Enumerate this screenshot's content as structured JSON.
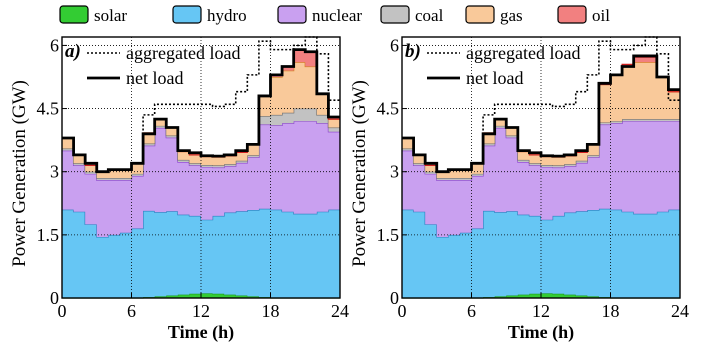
{
  "legend": {
    "items": [
      {
        "label": "solar",
        "color": "#33cc33"
      },
      {
        "label": "hydro",
        "color": "#66c6f4"
      },
      {
        "label": "nuclear",
        "color": "#c9a0f0"
      },
      {
        "label": "coal",
        "color": "#c2c2c2"
      },
      {
        "label": "gas",
        "color": "#f9c99a"
      },
      {
        "label": "oil",
        "color": "#f28080"
      }
    ]
  },
  "chart_data": [
    {
      "type": "area",
      "panel_label": "a)",
      "xlabel": "Time (h)",
      "ylabel": "Power Generation (GW)",
      "xlim": [
        0,
        24
      ],
      "ylim": [
        0,
        6.2
      ],
      "xticks": [
        "0",
        "6",
        "12",
        "18",
        "24"
      ],
      "yticks": [
        "0",
        "1.5",
        "3",
        "4.5",
        "6"
      ],
      "x_hours": [
        0,
        1,
        2,
        3,
        4,
        5,
        6,
        7,
        8,
        9,
        10,
        11,
        12,
        13,
        14,
        15,
        16,
        17,
        18,
        19,
        20,
        21,
        22,
        23
      ],
      "stack_order": [
        "solar",
        "hydro",
        "nuclear",
        "coal",
        "gas",
        "oil"
      ],
      "series": [
        {
          "name": "solar",
          "values": [
            0,
            0,
            0,
            0,
            0,
            0,
            0,
            0.02,
            0.04,
            0.06,
            0.08,
            0.1,
            0.11,
            0.1,
            0.08,
            0.06,
            0.04,
            0.02,
            0,
            0,
            0,
            0,
            0,
            0
          ]
        },
        {
          "name": "hydro",
          "values": [
            2.1,
            2.05,
            1.75,
            1.45,
            1.5,
            1.55,
            1.65,
            2.05,
            2.0,
            2.0,
            1.9,
            1.85,
            1.75,
            1.85,
            1.95,
            2.0,
            2.05,
            2.1,
            2.1,
            2.05,
            2.0,
            2.0,
            2.05,
            2.1
          ]
        },
        {
          "name": "nuclear",
          "values": [
            1.4,
            1.1,
            1.2,
            1.35,
            1.3,
            1.25,
            1.25,
            1.55,
            2.0,
            1.75,
            1.25,
            1.2,
            1.25,
            1.15,
            1.1,
            1.15,
            1.25,
            2.0,
            2.0,
            2.1,
            2.2,
            2.2,
            2.1,
            1.85
          ]
        },
        {
          "name": "coal",
          "values": [
            0.05,
            0.05,
            0.05,
            0.05,
            0.05,
            0.05,
            0.05,
            0.05,
            0.05,
            0.05,
            0.05,
            0.05,
            0.05,
            0.05,
            0.05,
            0.05,
            0.05,
            0.2,
            0.25,
            0.25,
            0.3,
            0.3,
            0.2,
            0.1
          ]
        },
        {
          "name": "gas",
          "values": [
            0.25,
            0.2,
            0.15,
            0.15,
            0.2,
            0.2,
            0.25,
            0.25,
            0.15,
            0.2,
            0.2,
            0.2,
            0.2,
            0.2,
            0.2,
            0.2,
            0.25,
            0.5,
            0.9,
            1.0,
            1.1,
            1.0,
            0.5,
            0.2
          ]
        },
        {
          "name": "oil",
          "values": [
            0,
            0,
            0,
            0,
            0,
            0,
            0,
            0,
            0,
            0,
            0,
            0,
            0,
            0,
            0,
            0,
            0,
            0,
            0.05,
            0.1,
            0.3,
            0.35,
            0,
            0
          ]
        },
        {
          "name": "aggregated load",
          "style": "dotted",
          "values": [
            3.8,
            3.4,
            3.2,
            3.0,
            3.05,
            3.05,
            3.2,
            4.35,
            4.6,
            4.6,
            4.6,
            4.6,
            4.6,
            4.55,
            4.6,
            4.9,
            5.3,
            6.1,
            5.9,
            5.9,
            6.0,
            6.2,
            5.8,
            4.7
          ]
        },
        {
          "name": "net load",
          "style": "solid",
          "values": [
            3.8,
            3.4,
            3.2,
            3.0,
            3.05,
            3.05,
            3.2,
            3.9,
            4.25,
            4.05,
            3.5,
            3.45,
            3.38,
            3.37,
            3.4,
            3.5,
            3.65,
            4.8,
            5.3,
            5.5,
            5.9,
            5.85,
            4.85,
            4.3
          ]
        }
      ]
    },
    {
      "type": "area",
      "panel_label": "b)",
      "xlabel": "Time (h)",
      "ylabel": "Power Generation (GW)",
      "xlim": [
        0,
        24
      ],
      "ylim": [
        0,
        6.2
      ],
      "xticks": [
        "0",
        "6",
        "12",
        "18",
        "24"
      ],
      "yticks": [
        "0",
        "1.5",
        "3",
        "4.5",
        "6"
      ],
      "x_hours": [
        0,
        1,
        2,
        3,
        4,
        5,
        6,
        7,
        8,
        9,
        10,
        11,
        12,
        13,
        14,
        15,
        16,
        17,
        18,
        19,
        20,
        21,
        22,
        23
      ],
      "stack_order": [
        "solar",
        "hydro",
        "nuclear",
        "coal",
        "gas",
        "oil"
      ],
      "series": [
        {
          "name": "solar",
          "values": [
            0,
            0,
            0,
            0,
            0,
            0,
            0,
            0.02,
            0.04,
            0.06,
            0.08,
            0.1,
            0.11,
            0.1,
            0.08,
            0.06,
            0.04,
            0.02,
            0,
            0,
            0,
            0,
            0,
            0
          ]
        },
        {
          "name": "hydro",
          "values": [
            2.1,
            2.05,
            1.75,
            1.45,
            1.5,
            1.55,
            1.65,
            2.05,
            2.0,
            2.0,
            1.9,
            1.85,
            1.75,
            1.85,
            1.95,
            2.0,
            2.05,
            2.1,
            2.1,
            2.05,
            2.0,
            2.0,
            2.05,
            2.1
          ]
        },
        {
          "name": "nuclear",
          "values": [
            1.4,
            1.1,
            1.2,
            1.35,
            1.3,
            1.25,
            1.25,
            1.55,
            2.0,
            1.75,
            1.25,
            1.2,
            1.25,
            1.15,
            1.1,
            1.15,
            1.25,
            2.0,
            2.05,
            2.15,
            2.2,
            2.2,
            2.15,
            2.1
          ]
        },
        {
          "name": "coal",
          "values": [
            0.05,
            0.05,
            0.05,
            0.05,
            0.05,
            0.05,
            0.05,
            0.05,
            0.05,
            0.05,
            0.05,
            0.05,
            0.05,
            0.05,
            0.05,
            0.05,
            0.05,
            0.05,
            0.05,
            0.05,
            0.05,
            0.05,
            0.05,
            0.05
          ]
        },
        {
          "name": "gas",
          "values": [
            0.25,
            0.2,
            0.15,
            0.15,
            0.2,
            0.2,
            0.25,
            0.25,
            0.15,
            0.2,
            0.2,
            0.2,
            0.2,
            0.2,
            0.2,
            0.2,
            0.25,
            0.9,
            1.1,
            1.25,
            1.35,
            1.35,
            1.0,
            0.65
          ]
        },
        {
          "name": "oil",
          "values": [
            0,
            0,
            0,
            0,
            0,
            0,
            0,
            0,
            0,
            0,
            0,
            0,
            0,
            0,
            0,
            0,
            0,
            0,
            0,
            0.05,
            0.12,
            0.12,
            0,
            0
          ]
        },
        {
          "name": "aggregated load",
          "style": "dotted",
          "values": [
            3.8,
            3.4,
            3.2,
            3.0,
            3.05,
            3.05,
            3.2,
            4.35,
            4.6,
            4.6,
            4.6,
            4.6,
            4.6,
            4.55,
            4.6,
            4.9,
            5.3,
            6.1,
            5.9,
            5.9,
            6.0,
            6.2,
            5.8,
            4.7
          ]
        },
        {
          "name": "net load",
          "style": "solid",
          "values": [
            3.8,
            3.4,
            3.2,
            3.0,
            3.05,
            3.05,
            3.2,
            3.9,
            4.25,
            4.05,
            3.5,
            3.45,
            3.38,
            3.37,
            3.4,
            3.5,
            3.65,
            5.1,
            5.3,
            5.5,
            5.75,
            5.75,
            5.25,
            4.95
          ]
        }
      ]
    }
  ]
}
